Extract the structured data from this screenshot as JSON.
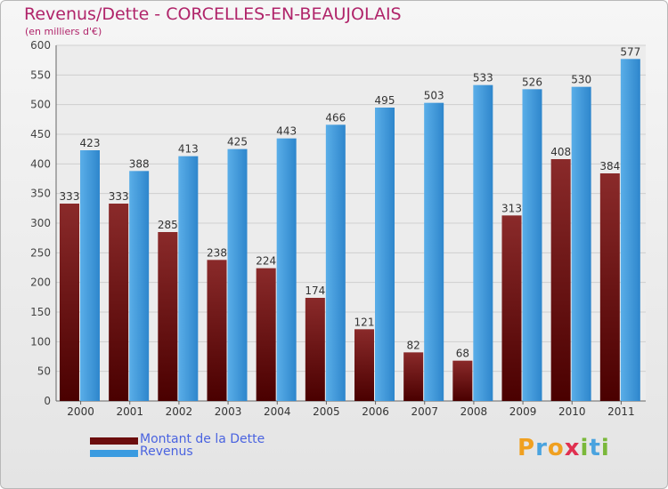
{
  "header": {
    "title": "Revenus/Dette - CORCELLES-EN-BEAUJOLAIS",
    "subtitle": "(en milliers d'€)"
  },
  "colors": {
    "title": "#b0246a",
    "dette": "#7a1a1a",
    "revenus": "#3a9be0",
    "legend_text": "#4a63e0"
  },
  "legend": [
    {
      "label": "Montant de la Dette",
      "color": "#6b0d0d"
    },
    {
      "label": "Revenus",
      "color": "#3a9be0"
    }
  ],
  "logo": {
    "text": "Proxiti"
  },
  "chart_data": {
    "type": "bar",
    "categories": [
      "2000",
      "2001",
      "2002",
      "2003",
      "2004",
      "2005",
      "2006",
      "2007",
      "2008",
      "2009",
      "2010",
      "2011"
    ],
    "series": [
      {
        "name": "Montant de la Dette",
        "values": [
          333,
          333,
          285,
          238,
          224,
          174,
          121,
          82,
          68,
          313,
          408,
          384
        ]
      },
      {
        "name": "Revenus",
        "values": [
          423,
          388,
          413,
          425,
          443,
          466,
          495,
          503,
          533,
          526,
          530,
          577
        ]
      }
    ],
    "yticks": [
      0,
      50,
      100,
      150,
      200,
      250,
      300,
      350,
      400,
      450,
      500,
      550,
      600
    ],
    "ylim": [
      0,
      600
    ],
    "grid": true,
    "legend_position": "bottom-left"
  }
}
